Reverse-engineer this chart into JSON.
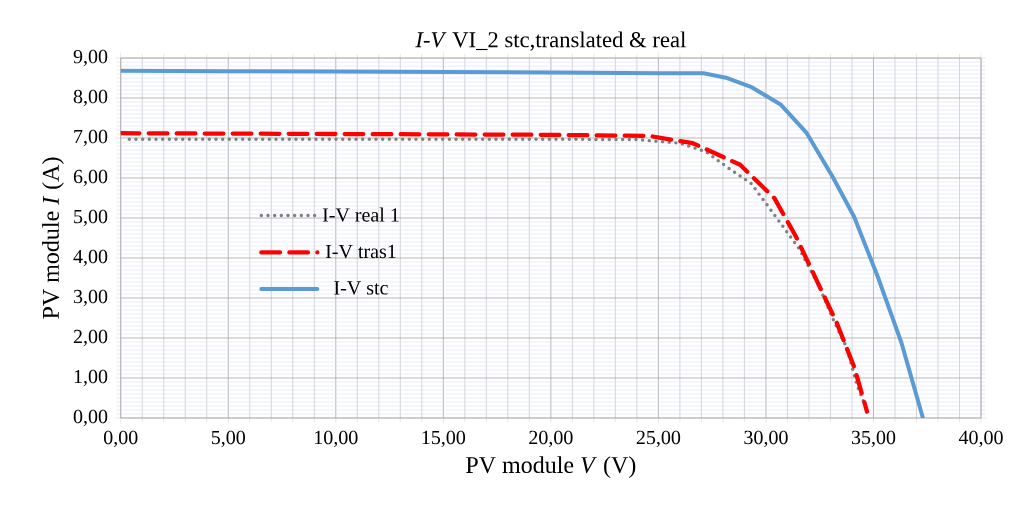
{
  "chart_data": {
    "type": "line",
    "title": "*I-V*  VI_2 stc,translated & real",
    "xlabel": "PV module *V* (V)",
    "ylabel": "PV module *I* (A)",
    "xlim": [
      0,
      40
    ],
    "ylim": [
      0,
      9
    ],
    "xticks": [
      {
        "value": 0,
        "label": "0,00"
      },
      {
        "value": 5,
        "label": "5,00"
      },
      {
        "value": 10,
        "label": "10,00"
      },
      {
        "value": 15,
        "label": "15,00"
      },
      {
        "value": 20,
        "label": "20,00"
      },
      {
        "value": 25,
        "label": "25,00"
      },
      {
        "value": 30,
        "label": "30,00"
      },
      {
        "value": 35,
        "label": "35,00"
      },
      {
        "value": 40,
        "label": "40,00"
      }
    ],
    "yticks": [
      {
        "value": 0,
        "label": "0,00"
      },
      {
        "value": 1,
        "label": "1,00"
      },
      {
        "value": 2,
        "label": "2,00"
      },
      {
        "value": 3,
        "label": "3,00"
      },
      {
        "value": 4,
        "label": "4,00"
      },
      {
        "value": 5,
        "label": "5,00"
      },
      {
        "value": 6,
        "label": "6,00"
      },
      {
        "value": 7,
        "label": "7,00"
      },
      {
        "value": 8,
        "label": "8,00"
      },
      {
        "value": 9,
        "label": "9,00"
      }
    ],
    "grid": true,
    "legend": "left",
    "marker": "none",
    "series": [
      {
        "name": "I-V real 1",
        "color": "#808080",
        "line_style": "dotted",
        "x": [
          0.4,
          10,
          20,
          24,
          26.0,
          27.2,
          28.2,
          29.3,
          30.05,
          30.8,
          31.56,
          32.45,
          33.14,
          33.77,
          34.23,
          34.6
        ],
        "values": [
          6.97,
          6.97,
          6.97,
          6.96,
          6.87,
          6.66,
          6.27,
          5.87,
          5.33,
          4.78,
          4.22,
          3.32,
          2.45,
          1.74,
          0.83,
          0.33
        ]
      },
      {
        "name": "I-V tras1",
        "color": "#ff0000",
        "line_style": "dashed",
        "x": [
          0,
          10,
          20,
          24.6,
          26.6,
          28.8,
          30.4,
          31.4,
          32.5,
          33.3,
          34.1,
          34.7
        ],
        "values": [
          7.12,
          7.1,
          7.08,
          7.05,
          6.87,
          6.33,
          5.49,
          4.53,
          3.28,
          2.37,
          1.28,
          0.16
        ]
      },
      {
        "name": "I-V stc",
        "color": "#5b9bd5",
        "line_style": "solid",
        "x": [
          0,
          5,
          10,
          15,
          20,
          25,
          27.1,
          28.2,
          29.3,
          30.7,
          31.9,
          33.1,
          34.1,
          35.2,
          36.3,
          37.3
        ],
        "values": [
          8.68,
          8.67,
          8.66,
          8.65,
          8.64,
          8.62,
          8.62,
          8.5,
          8.28,
          7.83,
          7.12,
          6.03,
          5.03,
          3.53,
          1.88,
          0
        ]
      }
    ]
  }
}
